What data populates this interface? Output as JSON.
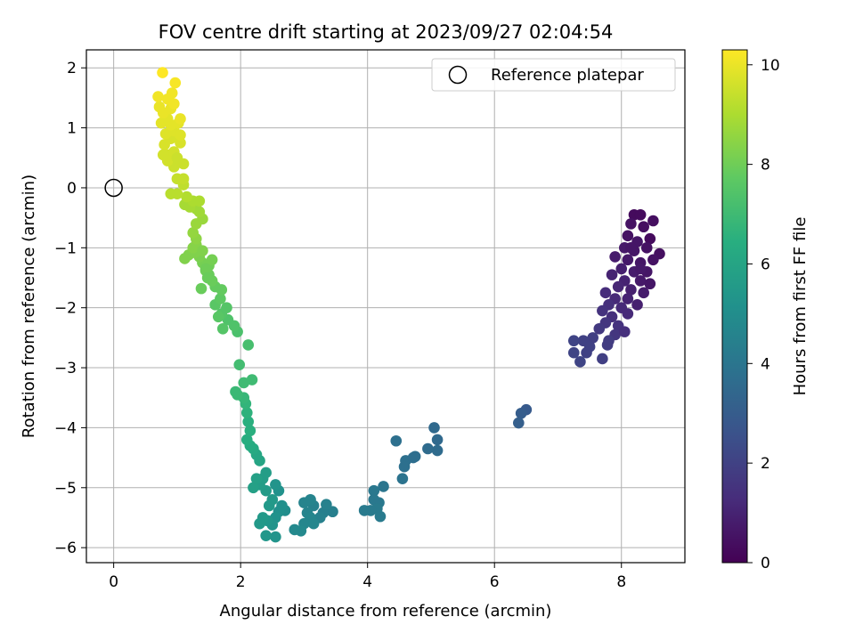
{
  "chart_data": {
    "type": "scatter",
    "title": "FOV centre drift starting at 2023/09/27 02:04:54",
    "xlabel": "Angular distance from reference (arcmin)",
    "ylabel": "Rotation from reference (arcmin)",
    "xlim": [
      -0.43,
      9.0
    ],
    "ylim": [
      -6.25,
      2.3
    ],
    "xticks": [
      0,
      2,
      4,
      6,
      8
    ],
    "yticks": [
      -6,
      -5,
      -4,
      -3,
      -2,
      -1,
      0,
      1,
      2
    ],
    "grid": true,
    "legend": {
      "position": "top-right",
      "entries": [
        "Reference platepar"
      ]
    },
    "colorbar": {
      "label": "Hours from first FF file",
      "colormap": "viridis",
      "range": [
        0,
        10.3
      ],
      "ticks": [
        0,
        2,
        4,
        6,
        8,
        10
      ]
    },
    "reference_point": {
      "x": 0,
      "y": 0
    },
    "series": [
      {
        "points": [
          [
            8.2,
            -0.45,
            0.3
          ],
          [
            8.3,
            -0.45,
            0.3
          ],
          [
            8.5,
            -0.55,
            0.4
          ],
          [
            8.15,
            -0.6,
            0.5
          ],
          [
            8.35,
            -0.65,
            0.4
          ],
          [
            8.1,
            -0.8,
            0.5
          ],
          [
            8.25,
            -0.9,
            0.6
          ],
          [
            8.45,
            -0.85,
            0.3
          ],
          [
            8.05,
            -1.0,
            0.7
          ],
          [
            8.2,
            -1.05,
            0.6
          ],
          [
            8.4,
            -1.0,
            0.5
          ],
          [
            8.6,
            -1.1,
            0.4
          ],
          [
            7.9,
            -1.15,
            0.8
          ],
          [
            8.1,
            -1.2,
            0.7
          ],
          [
            8.3,
            -1.25,
            0.6
          ],
          [
            8.5,
            -1.2,
            0.5
          ],
          [
            8.0,
            -1.35,
            0.9
          ],
          [
            8.2,
            -1.4,
            0.8
          ],
          [
            8.4,
            -1.4,
            0.6
          ],
          [
            7.85,
            -1.45,
            1.0
          ],
          [
            8.05,
            -1.55,
            1.0
          ],
          [
            8.3,
            -1.55,
            0.7
          ],
          [
            8.45,
            -1.6,
            0.6
          ],
          [
            7.95,
            -1.65,
            1.1
          ],
          [
            8.15,
            -1.7,
            0.9
          ],
          [
            8.35,
            -1.75,
            0.8
          ],
          [
            7.75,
            -1.75,
            1.3
          ],
          [
            7.9,
            -1.85,
            1.2
          ],
          [
            8.1,
            -1.85,
            1.0
          ],
          [
            8.25,
            -1.95,
            0.9
          ],
          [
            7.8,
            -1.95,
            1.4
          ],
          [
            8.0,
            -2.0,
            1.2
          ],
          [
            7.7,
            -2.05,
            1.5
          ],
          [
            7.85,
            -2.15,
            1.4
          ],
          [
            8.1,
            -2.1,
            1.2
          ],
          [
            7.75,
            -2.25,
            1.6
          ],
          [
            7.95,
            -2.3,
            1.5
          ],
          [
            7.65,
            -2.35,
            1.7
          ],
          [
            7.9,
            -2.45,
            1.6
          ],
          [
            7.55,
            -2.5,
            1.9
          ],
          [
            7.8,
            -2.55,
            1.8
          ],
          [
            7.4,
            -2.55,
            2.0
          ],
          [
            7.5,
            -2.65,
            2.0
          ],
          [
            7.25,
            -2.55,
            2.1
          ],
          [
            7.25,
            -2.75,
            2.1
          ],
          [
            7.45,
            -2.75,
            2.0
          ],
          [
            7.35,
            -2.9,
            2.1
          ],
          [
            7.7,
            -2.85,
            1.9
          ],
          [
            7.78,
            -2.62,
            1.8
          ],
          [
            8.05,
            -2.4,
            1.4
          ],
          [
            8.3,
            -1.35,
            0.7
          ],
          [
            8.15,
            -1.0,
            0.6
          ],
          [
            6.5,
            -3.7,
            2.9
          ],
          [
            6.42,
            -3.76,
            3.0
          ],
          [
            6.38,
            -3.92,
            3.1
          ],
          [
            5.05,
            -4.0,
            3.5
          ],
          [
            5.1,
            -4.2,
            3.5
          ],
          [
            5.1,
            -4.38,
            3.6
          ],
          [
            4.95,
            -4.35,
            3.6
          ],
          [
            4.75,
            -4.48,
            3.7
          ],
          [
            4.6,
            -4.55,
            3.8
          ],
          [
            4.72,
            -4.5,
            3.7
          ],
          [
            4.58,
            -4.65,
            3.8
          ],
          [
            4.55,
            -4.85,
            3.9
          ],
          [
            4.45,
            -4.22,
            3.8
          ],
          [
            4.25,
            -4.98,
            4.0
          ],
          [
            4.1,
            -5.05,
            4.1
          ],
          [
            4.1,
            -5.2,
            4.1
          ],
          [
            4.18,
            -5.25,
            4.1
          ],
          [
            4.15,
            -5.35,
            4.2
          ],
          [
            4.05,
            -5.38,
            4.2
          ],
          [
            3.95,
            -5.38,
            4.2
          ],
          [
            4.2,
            -5.48,
            4.2
          ],
          [
            3.45,
            -5.4,
            4.4
          ],
          [
            3.3,
            -5.42,
            4.4
          ],
          [
            3.25,
            -5.5,
            4.5
          ],
          [
            3.15,
            -5.3,
            4.5
          ],
          [
            3.1,
            -5.2,
            4.6
          ],
          [
            3.0,
            -5.25,
            4.6
          ],
          [
            3.05,
            -5.42,
            4.6
          ],
          [
            3.1,
            -5.5,
            4.7
          ],
          [
            3.0,
            -5.6,
            4.7
          ],
          [
            2.95,
            -5.72,
            4.8
          ],
          [
            2.85,
            -5.7,
            4.8
          ],
          [
            3.15,
            -5.6,
            4.7
          ],
          [
            3.35,
            -5.28,
            4.5
          ],
          [
            2.7,
            -5.38,
            5.0
          ],
          [
            2.65,
            -5.3,
            5.1
          ],
          [
            2.6,
            -5.05,
            5.2
          ],
          [
            2.55,
            -4.95,
            5.3
          ],
          [
            2.6,
            -5.4,
            5.1
          ],
          [
            2.55,
            -5.5,
            5.2
          ],
          [
            2.5,
            -5.62,
            5.3
          ],
          [
            2.55,
            -5.82,
            5.3
          ],
          [
            2.4,
            -5.8,
            5.4
          ],
          [
            2.42,
            -5.55,
            5.4
          ],
          [
            2.35,
            -5.5,
            5.5
          ],
          [
            2.3,
            -5.6,
            5.5
          ],
          [
            2.45,
            -5.3,
            5.5
          ],
          [
            2.5,
            -5.2,
            5.5
          ],
          [
            2.4,
            -5.05,
            5.6
          ],
          [
            2.3,
            -4.95,
            5.7
          ],
          [
            2.35,
            -4.85,
            5.7
          ],
          [
            2.2,
            -5.0,
            5.8
          ],
          [
            2.25,
            -4.85,
            5.8
          ],
          [
            2.4,
            -4.75,
            5.7
          ],
          [
            2.3,
            -4.55,
            6.0
          ],
          [
            2.25,
            -4.45,
            6.1
          ],
          [
            2.2,
            -4.35,
            6.2
          ],
          [
            2.15,
            -4.3,
            6.3
          ],
          [
            2.1,
            -4.2,
            6.4
          ],
          [
            2.15,
            -4.05,
            6.5
          ],
          [
            2.12,
            -3.9,
            6.5
          ],
          [
            2.1,
            -3.75,
            6.6
          ],
          [
            2.08,
            -3.6,
            6.7
          ],
          [
            2.05,
            -3.5,
            6.8
          ],
          [
            1.95,
            -3.45,
            6.9
          ],
          [
            1.92,
            -3.4,
            6.9
          ],
          [
            2.05,
            -3.25,
            7.0
          ],
          [
            2.18,
            -3.2,
            7.0
          ],
          [
            1.98,
            -2.95,
            7.1
          ],
          [
            2.12,
            -2.62,
            7.2
          ],
          [
            1.95,
            -2.4,
            7.3
          ],
          [
            1.9,
            -2.3,
            7.4
          ],
          [
            1.8,
            -2.2,
            7.4
          ],
          [
            1.72,
            -2.35,
            7.5
          ],
          [
            1.7,
            -2.1,
            7.5
          ],
          [
            1.78,
            -2.0,
            7.5
          ],
          [
            1.65,
            -2.15,
            7.6
          ],
          [
            1.6,
            -1.95,
            7.6
          ],
          [
            1.68,
            -1.85,
            7.7
          ],
          [
            1.7,
            -1.7,
            7.8
          ],
          [
            1.6,
            -1.65,
            7.8
          ],
          [
            1.55,
            -1.55,
            7.9
          ],
          [
            1.5,
            -1.45,
            7.9
          ],
          [
            1.45,
            -1.38,
            8.0
          ],
          [
            1.5,
            -1.3,
            8.0
          ],
          [
            1.55,
            -1.2,
            8.1
          ],
          [
            1.4,
            -1.25,
            8.1
          ],
          [
            1.35,
            -1.15,
            8.2
          ],
          [
            1.28,
            -1.08,
            8.3
          ],
          [
            1.18,
            -1.12,
            8.3
          ],
          [
            1.12,
            -1.18,
            8.3
          ],
          [
            1.25,
            -1.0,
            8.4
          ],
          [
            1.3,
            -0.95,
            8.4
          ],
          [
            1.4,
            -1.05,
            8.3
          ],
          [
            1.45,
            -1.35,
            8.0
          ],
          [
            1.38,
            -1.68,
            7.9
          ],
          [
            1.48,
            -1.5,
            7.9
          ],
          [
            1.3,
            -0.85,
            8.5
          ],
          [
            1.25,
            -0.75,
            8.6
          ],
          [
            1.3,
            -0.6,
            8.7
          ],
          [
            1.4,
            -0.52,
            8.7
          ],
          [
            1.35,
            -0.4,
            8.8
          ],
          [
            1.3,
            -0.35,
            8.8
          ],
          [
            1.2,
            -0.32,
            8.9
          ],
          [
            1.12,
            -0.28,
            8.9
          ],
          [
            1.25,
            -0.22,
            9.0
          ],
          [
            1.35,
            -0.22,
            9.0
          ],
          [
            1.15,
            -0.15,
            9.1
          ],
          [
            1.0,
            -0.1,
            9.2
          ],
          [
            0.9,
            -0.1,
            9.2
          ],
          [
            1.1,
            0.05,
            9.3
          ],
          [
            1.0,
            0.15,
            9.4
          ],
          [
            1.1,
            0.15,
            9.4
          ],
          [
            0.95,
            0.35,
            9.5
          ],
          [
            1.1,
            0.4,
            9.5
          ],
          [
            0.85,
            0.55,
            9.6
          ],
          [
            0.95,
            0.6,
            9.6
          ],
          [
            0.8,
            0.72,
            9.7
          ],
          [
            1.05,
            0.75,
            9.7
          ],
          [
            0.9,
            0.82,
            9.7
          ],
          [
            0.82,
            0.9,
            9.8
          ],
          [
            0.95,
            0.95,
            9.8
          ],
          [
            1.05,
            0.88,
            9.8
          ],
          [
            1.02,
            1.08,
            9.9
          ],
          [
            0.75,
            1.08,
            9.9
          ],
          [
            0.9,
            1.05,
            9.9
          ],
          [
            0.85,
            1.15,
            9.9
          ],
          [
            1.05,
            1.15,
            10.0
          ],
          [
            0.78,
            1.25,
            10.0
          ],
          [
            0.9,
            1.32,
            10.0
          ],
          [
            0.72,
            1.35,
            10.0
          ],
          [
            0.95,
            1.4,
            10.1
          ],
          [
            0.85,
            1.48,
            10.1
          ],
          [
            0.7,
            1.52,
            10.1
          ],
          [
            0.92,
            1.58,
            10.1
          ],
          [
            0.97,
            1.75,
            10.2
          ],
          [
            0.77,
            1.92,
            10.3
          ],
          [
            0.85,
            0.45,
            9.6
          ],
          [
            0.78,
            0.55,
            9.6
          ],
          [
            1.0,
            0.5,
            9.5
          ]
        ]
      }
    ]
  }
}
